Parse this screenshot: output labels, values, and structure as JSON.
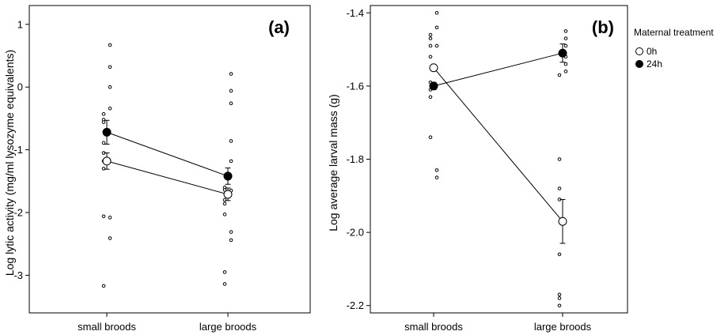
{
  "legend": {
    "title": "Maternal treatment",
    "entries": [
      {
        "name": "0h",
        "fill": "#ffffff"
      },
      {
        "name": "24h",
        "fill": "#000000"
      }
    ]
  },
  "chart_data": [
    {
      "type": "scatter",
      "panel_label": "(a)",
      "ylabel": "Log lytic activity (mg/ml lysozyme equivalents)",
      "xlabel": "",
      "categories": [
        "small broods",
        "large broods"
      ],
      "ylim": [
        -3.6,
        1.3
      ],
      "yticks": [
        1,
        0,
        -1,
        -2,
        -3
      ],
      "ytick_labels": [
        "1",
        "0",
        "-1",
        "-2",
        "-3"
      ],
      "series": [
        {
          "name": "0h",
          "means": [
            -1.18,
            -1.71
          ],
          "se": [
            0.13,
            0.1
          ]
        },
        {
          "name": "24h",
          "means": [
            -0.72,
            -1.42
          ],
          "se": [
            0.19,
            0.13
          ]
        }
      ],
      "raw_points": [
        {
          "category": "small broods",
          "offset": -1,
          "values": [
            -0.43,
            -0.52,
            -0.56,
            -0.89,
            -1.05,
            -1.18,
            -1.3,
            -2.06,
            -3.17
          ]
        },
        {
          "category": "small broods",
          "offset": 1,
          "values": [
            0.67,
            0.32,
            0.0,
            -0.34,
            -2.08,
            -2.41
          ]
        },
        {
          "category": "large broods",
          "offset": -1,
          "values": [
            -1.6,
            -1.64,
            -1.8,
            -1.86,
            -2.03,
            -2.95,
            -3.14
          ]
        },
        {
          "category": "large broods",
          "offset": 1,
          "values": [
            0.21,
            -0.06,
            -0.26,
            -0.86,
            -1.18,
            -1.65,
            -2.31,
            -2.44
          ]
        }
      ]
    },
    {
      "type": "scatter",
      "panel_label": "(b)",
      "ylabel": "Log average larval mass (g)",
      "xlabel": "",
      "categories": [
        "small broods",
        "large broods"
      ],
      "ylim": [
        -2.22,
        -1.38
      ],
      "yticks": [
        -1.4,
        -1.6,
        -1.8,
        -2.0,
        -2.2
      ],
      "ytick_labels": [
        "-1.4",
        "-1.6",
        "-1.8",
        "-2.0",
        "-2.2"
      ],
      "series": [
        {
          "name": "0h",
          "means": [
            -1.55,
            -1.97
          ],
          "se": [
            0.005,
            0.06
          ]
        },
        {
          "name": "24h",
          "means": [
            -1.6,
            -1.51
          ],
          "se": [
            0.01,
            0.025
          ]
        }
      ],
      "raw_points": [
        {
          "category": "small broods",
          "offset": -1,
          "values": [
            -1.46,
            -1.47,
            -1.49,
            -1.52,
            -1.59,
            -1.61,
            -1.63,
            -1.74
          ]
        },
        {
          "category": "small broods",
          "offset": 1,
          "values": [
            -1.4,
            -1.44,
            -1.49,
            -1.83,
            -1.85
          ]
        },
        {
          "category": "large broods",
          "offset": -1,
          "values": [
            -1.57,
            -1.8,
            -1.88,
            -1.91,
            -2.06,
            -2.17,
            -2.18,
            -2.2
          ]
        },
        {
          "category": "large broods",
          "offset": 1,
          "values": [
            -1.45,
            -1.47,
            -1.49,
            -1.52,
            -1.54,
            -1.56
          ]
        }
      ]
    }
  ]
}
